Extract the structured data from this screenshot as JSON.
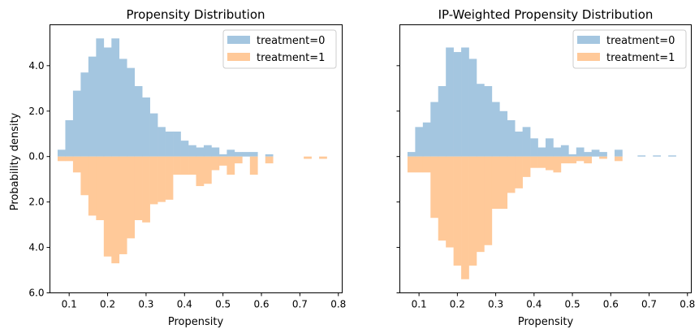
{
  "figure": {
    "colors": {
      "treatment_0": "#a4c6e0",
      "treatment_1": "#ffc999"
    },
    "legend_labels": [
      "treatment=0",
      "treatment=1"
    ],
    "legend_placement": "upper right"
  },
  "chart_data": [
    {
      "type": "bar",
      "title": "Propensity Distribution",
      "xlabel": "Propensity",
      "ylabel": "Probability density",
      "xlim": [
        0.05,
        0.81
      ],
      "ylim": [
        -6.0,
        5.8
      ],
      "x_ticks": [
        0.1,
        0.2,
        0.3,
        0.4,
        0.5,
        0.6,
        0.7,
        0.8
      ],
      "x_tick_labels": [
        "0.1",
        "0.2",
        "0.3",
        "0.4",
        "0.5",
        "0.6",
        "0.7",
        "0.8"
      ],
      "y_ticks": [
        4.0,
        2.0,
        0.0,
        -2.0,
        -4.0,
        -6.0
      ],
      "y_tick_labels": [
        "4.0",
        "2.0",
        "0.0",
        "2.0",
        "4.0",
        "6.0"
      ],
      "bin_edges": [
        0.07,
        0.09,
        0.11,
        0.13,
        0.15,
        0.17,
        0.19,
        0.21,
        0.23,
        0.25,
        0.27,
        0.29,
        0.31,
        0.33,
        0.35,
        0.37,
        0.39,
        0.41,
        0.43,
        0.45,
        0.47,
        0.49,
        0.51,
        0.53,
        0.55,
        0.57,
        0.59,
        0.61,
        0.63,
        0.65,
        0.67,
        0.69,
        0.71,
        0.73,
        0.75,
        0.77
      ],
      "series": [
        {
          "name": "treatment=0",
          "direction": "up",
          "values": [
            0.3,
            1.6,
            2.9,
            3.7,
            4.4,
            5.2,
            4.8,
            5.2,
            4.3,
            3.9,
            3.1,
            2.6,
            1.9,
            1.3,
            1.1,
            1.1,
            0.7,
            0.5,
            0.4,
            0.5,
            0.4,
            0.1,
            0.3,
            0.2,
            0.2,
            0.2,
            0.0,
            0.1,
            0.0,
            0.0,
            0.0,
            0.0,
            0.0,
            0.0,
            0.0
          ]
        },
        {
          "name": "treatment=1",
          "direction": "down",
          "values": [
            0.2,
            0.2,
            0.7,
            1.7,
            2.6,
            2.8,
            4.4,
            4.7,
            4.3,
            3.6,
            2.8,
            2.9,
            2.1,
            2.0,
            1.9,
            0.8,
            0.8,
            0.8,
            1.3,
            1.2,
            0.6,
            0.4,
            0.8,
            0.3,
            0.0,
            0.8,
            0.0,
            0.3,
            0.0,
            0.0,
            0.0,
            0.0,
            0.1,
            0.0,
            0.1
          ]
        }
      ]
    },
    {
      "type": "bar",
      "title": "IP-Weighted Propensity Distribution",
      "xlabel": "Propensity",
      "ylabel": "",
      "xlim": [
        0.05,
        0.81
      ],
      "ylim": [
        -6.0,
        5.8
      ],
      "x_ticks": [
        0.1,
        0.2,
        0.3,
        0.4,
        0.5,
        0.6,
        0.7,
        0.8
      ],
      "x_tick_labels": [
        "0.1",
        "0.2",
        "0.3",
        "0.4",
        "0.5",
        "0.6",
        "0.7",
        "0.8"
      ],
      "y_ticks": [
        4.0,
        2.0,
        0.0,
        -2.0,
        -4.0,
        -6.0
      ],
      "y_tick_labels": [],
      "bin_edges": [
        0.07,
        0.09,
        0.11,
        0.13,
        0.15,
        0.17,
        0.19,
        0.21,
        0.23,
        0.25,
        0.27,
        0.29,
        0.31,
        0.33,
        0.35,
        0.37,
        0.39,
        0.41,
        0.43,
        0.45,
        0.47,
        0.49,
        0.51,
        0.53,
        0.55,
        0.57,
        0.59,
        0.61,
        0.63,
        0.65,
        0.67,
        0.69,
        0.71,
        0.73,
        0.75,
        0.77
      ],
      "series": [
        {
          "name": "treatment=0",
          "direction": "up",
          "values": [
            0.2,
            1.3,
            1.5,
            2.4,
            3.1,
            4.8,
            4.6,
            4.8,
            4.3,
            3.2,
            3.1,
            2.4,
            2.0,
            1.6,
            1.1,
            1.3,
            0.8,
            0.4,
            0.8,
            0.4,
            0.5,
            0.1,
            0.4,
            0.2,
            0.3,
            0.2,
            0.0,
            0.3,
            0.0,
            0.0,
            0.05,
            0.0,
            0.05,
            0.0,
            0.05
          ]
        },
        {
          "name": "treatment=1",
          "direction": "down",
          "values": [
            0.7,
            0.7,
            0.7,
            2.7,
            3.7,
            4.0,
            4.8,
            5.4,
            4.8,
            4.2,
            3.9,
            2.3,
            2.3,
            1.6,
            1.4,
            0.9,
            0.5,
            0.5,
            0.6,
            0.7,
            0.3,
            0.3,
            0.2,
            0.3,
            0.0,
            0.1,
            0.0,
            0.2,
            0.0,
            0.0,
            0.0,
            0.0,
            0.0,
            0.0,
            0.0
          ]
        }
      ]
    }
  ]
}
